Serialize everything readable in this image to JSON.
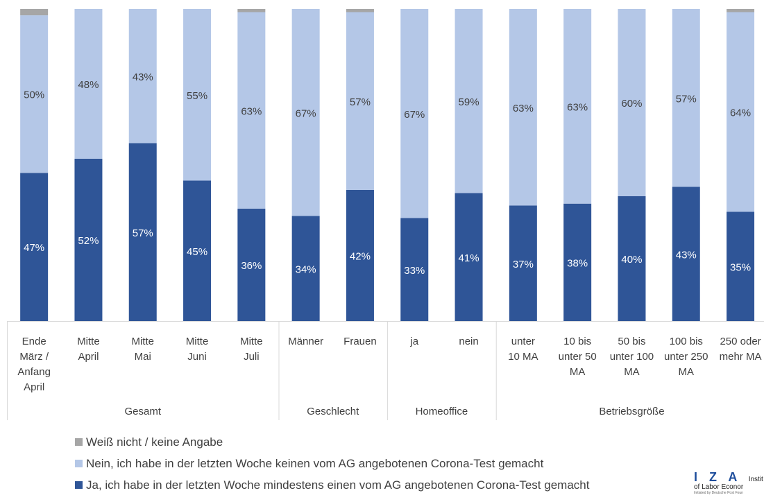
{
  "chart_data": {
    "type": "bar",
    "stacked": true,
    "normalized": true,
    "categories": [
      [
        "Ende",
        "März /",
        "Anfang",
        "April"
      ],
      [
        "Mitte",
        "April"
      ],
      [
        "Mitte",
        "Mai"
      ],
      [
        "Mitte",
        "Juni"
      ],
      [
        "Mitte",
        "Juli"
      ],
      [
        "Männer"
      ],
      [
        "Frauen"
      ],
      [
        "ja"
      ],
      [
        "nein"
      ],
      [
        "unter",
        "10 MA"
      ],
      [
        "10 bis",
        "unter 50",
        "MA"
      ],
      [
        "50 bis",
        "unter 100",
        "MA"
      ],
      [
        "100 bis",
        "unter 250",
        "MA"
      ],
      [
        "250 oder",
        "mehr MA"
      ]
    ],
    "groups": [
      {
        "label": "Gesamt",
        "count": 5
      },
      {
        "label": "Geschlecht",
        "count": 2
      },
      {
        "label": "Homeoffice",
        "count": 2
      },
      {
        "label": "Betriebsgröße",
        "count": 5
      }
    ],
    "series": [
      {
        "name": "Ja, ich habe in der letzten Woche mindestens einen vom AG angebotenen Corona-Test gemacht",
        "color": "#2f5597",
        "values": [
          47,
          52,
          57,
          45,
          36,
          34,
          42,
          33,
          41,
          37,
          38,
          40,
          43,
          35
        ],
        "labels": [
          "47%",
          "52%",
          "57%",
          "45%",
          "36%",
          "34%",
          "42%",
          "33%",
          "41%",
          "37%",
          "38%",
          "40%",
          "43%",
          "35%"
        ]
      },
      {
        "name": "Nein, ich habe in der letzten Woche keinen vom AG angebotenen Corona-Test gemacht",
        "color": "#b4c7e7",
        "values": [
          50,
          48,
          43,
          55,
          63,
          67,
          57,
          67,
          59,
          63,
          63,
          60,
          57,
          64
        ],
        "labels": [
          "50%",
          "48%",
          "43%",
          "55%",
          "63%",
          "67%",
          "57%",
          "67%",
          "59%",
          "63%",
          "63%",
          "60%",
          "57%",
          "64%"
        ]
      },
      {
        "name": "Weiß nicht / keine Angabe",
        "color": "#a6a6a6",
        "values": [
          2,
          0,
          0,
          0,
          1,
          0,
          1,
          0,
          0,
          0,
          0,
          0,
          0,
          1
        ],
        "labels": []
      }
    ],
    "legend_order": [
      2,
      1,
      0
    ],
    "legend_position": "bottom-left",
    "ylim": [
      0,
      100
    ],
    "grid": false
  },
  "logo": {
    "letters": "I Z A",
    "word1": "Instit",
    "word2": "of Labor Econor",
    "tagline": "Initiated by Deutsche Post Foun"
  }
}
